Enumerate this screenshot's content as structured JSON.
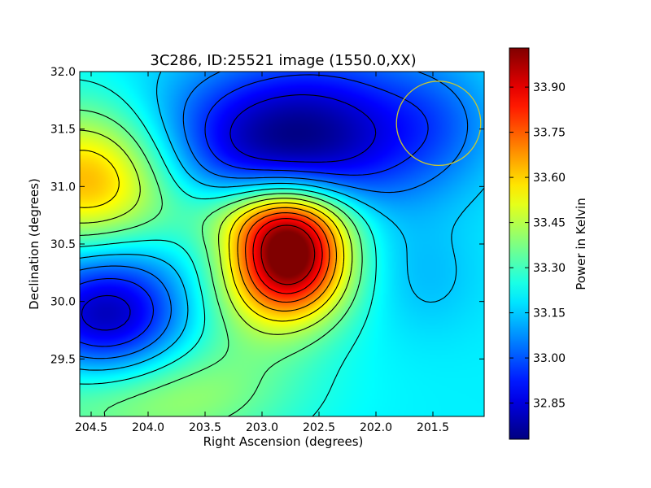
{
  "chart_data": {
    "type": "heatmap",
    "title": "3C286, ID:25521 image (1550.0,XX)",
    "xlabel": "Right Ascension (degrees)",
    "ylabel": "Declination (degrees)",
    "xlim": [
      204.6,
      201.05
    ],
    "ylim": [
      29.0,
      32.0
    ],
    "x_ticks": [
      "204.5",
      "204.0",
      "203.5",
      "203.0",
      "202.5",
      "202.0",
      "201.5"
    ],
    "x_tick_values": [
      204.5,
      204.0,
      203.5,
      203.0,
      202.5,
      202.0,
      201.5
    ],
    "y_ticks": [
      "29.5",
      "30.0",
      "30.5",
      "31.0",
      "31.5",
      "32.0"
    ],
    "y_tick_values": [
      29.5,
      30.0,
      30.5,
      31.0,
      31.5,
      32.0
    ],
    "grid": false,
    "colorbar": {
      "label": "Power in Kelvin",
      "range": [
        32.73,
        34.03
      ],
      "ticks": [
        "32.85",
        "33.00",
        "33.15",
        "33.30",
        "33.45",
        "33.60",
        "33.75",
        "33.90"
      ],
      "tick_values": [
        32.85,
        33.0,
        33.15,
        33.3,
        33.45,
        33.6,
        33.75,
        33.9
      ],
      "colormap": "jet"
    },
    "background_level": 33.2,
    "features": [
      {
        "ra": 202.75,
        "dec": 30.4,
        "amplitude": 0.83,
        "width_ra": 0.35,
        "width_dec": 0.35
      },
      {
        "ra": 202.9,
        "dec": 30.75,
        "amplitude": 0.25,
        "width_ra": 0.5,
        "width_dec": 0.22
      },
      {
        "ra": 203.05,
        "dec": 30.0,
        "amplitude": 0.15,
        "width_ra": 0.5,
        "width_dec": 0.4
      },
      {
        "ra": 204.5,
        "dec": 31.05,
        "amplitude": 0.47,
        "width_ra": 0.55,
        "width_dec": 0.45
      },
      {
        "ra": 204.1,
        "dec": 29.2,
        "amplitude": 0.28,
        "width_ra": 0.85,
        "width_dec": 0.35
      },
      {
        "ra": 203.0,
        "dec": 31.4,
        "amplitude": -0.36,
        "width_ra": 0.75,
        "width_dec": 0.45
      },
      {
        "ra": 202.3,
        "dec": 31.5,
        "amplitude": -0.18,
        "width_ra": 0.6,
        "width_dec": 0.55
      },
      {
        "ra": 204.35,
        "dec": 29.85,
        "amplitude": -0.45,
        "width_ra": 0.5,
        "width_dec": 0.45
      },
      {
        "ra": 201.45,
        "dec": 31.55,
        "amplitude": -0.12,
        "width_ra": 0.4,
        "width_dec": 0.4
      },
      {
        "ra": 201.55,
        "dec": 30.2,
        "amplitude": -0.06,
        "width_ra": 0.35,
        "width_dec": 0.35
      }
    ],
    "contour_levels": [
      32.85,
      32.95,
      33.05,
      33.15,
      33.25,
      33.35,
      33.45,
      33.55,
      33.65,
      33.75,
      33.85,
      33.95
    ],
    "annotations": [
      {
        "type": "circle",
        "center_ra": 201.45,
        "center_dec": 31.55,
        "radius_deg": 0.37,
        "color": "#c8c832"
      }
    ]
  }
}
